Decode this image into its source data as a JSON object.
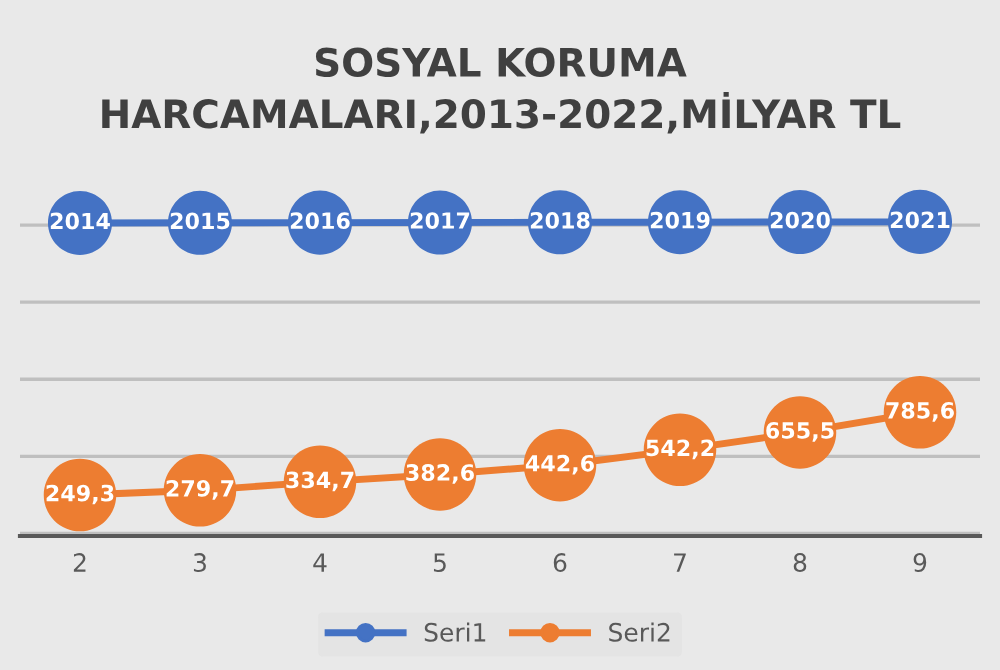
{
  "chart_data": {
    "type": "line",
    "title": "SOSYAL KORUMA\nHARCAMALARI,2013-2022,MİLYAR TL",
    "categories": [
      "2",
      "3",
      "4",
      "5",
      "6",
      "7",
      "8",
      "9"
    ],
    "series": [
      {
        "name": "Seri1",
        "color": "#4472c4",
        "values": [
          2014,
          2015,
          2016,
          2017,
          2018,
          2019,
          2020,
          2021
        ],
        "value_labels": [
          "2014",
          "2015",
          "2016",
          "2017",
          "2018",
          "2019",
          "2020",
          "2021"
        ]
      },
      {
        "name": "Seri2",
        "color": "#ed7d31",
        "values": [
          249.3,
          279.7,
          334.7,
          382.6,
          442.6,
          542.2,
          655.5,
          785.6
        ],
        "value_labels": [
          "249,3",
          "279,7",
          "334,7",
          "382,6",
          "442,6",
          "542,2",
          "655,5",
          "785,6"
        ]
      }
    ],
    "tick_labels": "x",
    "grid": "y",
    "legend": "bottom",
    "marker": "circle",
    "line_style": "solid"
  }
}
